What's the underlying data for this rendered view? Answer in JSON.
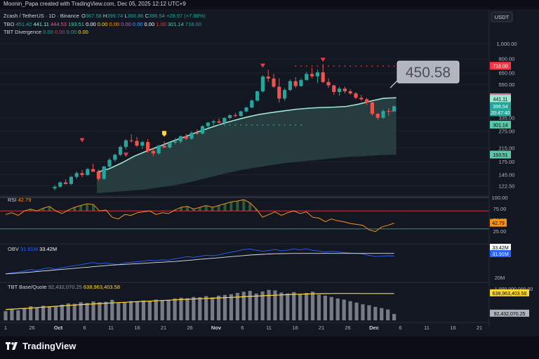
{
  "credit": "Moonin_Papa created with TradingView.com, Dec 05, 2025 12:12 UTC+9",
  "brand": "TradingView",
  "currency_button": "USDT",
  "legend": {
    "symbol": "Zcash / TetherUS · 1D · Binance",
    "o_label": "O",
    "o": "367.58",
    "h_label": "H",
    "h": "399.74",
    "l_label": "L",
    "l": "366.86",
    "c_label": "C",
    "c": "396.54",
    "change": "+28.97 (+7.88%)",
    "tbo_name": "TBO",
    "tbo_values": [
      "451.42",
      "441.11",
      "444.53",
      "193.51",
      "0.00",
      "0.00",
      "0.00",
      "0.00",
      "0.00",
      "0.00",
      "1.00",
      "301.14",
      "718.00"
    ],
    "div_name": "TBT Divergence",
    "div_values": [
      "0.00",
      "0.00",
      "0.00",
      "0.00"
    ],
    "rsi_name": "RSI",
    "rsi_value": "42.79",
    "obv_name": "OBV",
    "obv_values": [
      "31.91M",
      "33.42M"
    ],
    "bq_name": "TBT Base/Quote",
    "bq_values": [
      "92,432,070.25",
      "638,963,403.58"
    ]
  },
  "callout": "450.58",
  "price_scale": {
    "ticks": [
      {
        "label": "1,000.00",
        "v": 1000
      },
      {
        "label": "800.00",
        "v": 800
      },
      {
        "label": "650.00",
        "v": 650
      },
      {
        "label": "550.00",
        "v": 550
      },
      {
        "label": "335.00",
        "v": 335
      },
      {
        "label": "275.00",
        "v": 275
      },
      {
        "label": "215.00",
        "v": 215
      },
      {
        "label": "175.00",
        "v": 175
      },
      {
        "label": "145.00",
        "v": 145
      },
      {
        "label": "122.50",
        "v": 122.5
      }
    ],
    "badges": [
      {
        "label": "718.00",
        "v": 718,
        "color": "#f23645",
        "text": "#ffffff"
      },
      {
        "label": "451.42",
        "v": 451.42,
        "color": "#5bc8a8",
        "text": "#000000"
      },
      {
        "label": "444.53",
        "v": 444.53,
        "color": "#ff4d8f",
        "text": "#000000"
      },
      {
        "label": "441.11",
        "v": 441.11,
        "color": "#9fe8d3",
        "text": "#000000"
      },
      {
        "label": "396.54",
        "v": 396.54,
        "color": "#26a69a",
        "text": "#ffffff",
        "sub": "20:47:40"
      },
      {
        "label": "301.14",
        "v": 301.14,
        "color": "#5bc8a8",
        "text": "#000000"
      },
      {
        "label": "193.51",
        "v": 193.51,
        "color": "#5bc8a8",
        "text": "#000000"
      }
    ]
  },
  "rsi_scale": {
    "ticks": [
      {
        "label": "100.00",
        "v": 100
      },
      {
        "label": "75.00",
        "v": 75
      },
      {
        "label": "50.00",
        "v": 50
      },
      {
        "label": "25.00",
        "v": 25
      }
    ],
    "badge": {
      "label": "42.79",
      "v": 42.79,
      "color": "#f7931a"
    }
  },
  "obv_scale": {
    "ticks": [
      {
        "label": "20M",
        "v": 20
      }
    ],
    "badges": [
      {
        "label": "33.42M",
        "v": 33.42,
        "color": "#ffffff",
        "text": "#000000"
      },
      {
        "label": "31.91M",
        "v": 31.91,
        "color": "#2962ff",
        "text": "#ffffff"
      }
    ]
  },
  "bq_scale": {
    "ticks": [
      {
        "label": "1,000,000,000.00",
        "v": 1000000000
      }
    ],
    "badges": [
      {
        "label": "638,963,403.58",
        "v": 638963403.58,
        "color": "#fdd835",
        "text": "#000000"
      },
      {
        "label": "92,432,070.25",
        "v": 92432070.25,
        "color": "#b0b3bb",
        "text": "#000000"
      }
    ]
  },
  "time_axis": [
    "1",
    "26",
    "Oct",
    "6",
    "11",
    "16",
    "21",
    "26",
    "Nov",
    "6",
    "11",
    "16",
    "21",
    "26",
    "Dec",
    "6",
    "11",
    "16",
    "21"
  ],
  "chart_data": [
    {
      "type": "candlestick",
      "title": "Zcash / TetherUS · 1D · Binance",
      "scale": "log",
      "ylim": [
        110,
        1100
      ],
      "x_axis_labels": [
        "1",
        "26",
        "Oct",
        "6",
        "11",
        "16",
        "21",
        "26",
        "Nov",
        "6",
        "11",
        "16",
        "21",
        "26",
        "Dec",
        "6",
        "11",
        "16",
        "21"
      ],
      "ohlc": [
        [
          118,
          124,
          115,
          121
        ],
        [
          121,
          131,
          119,
          129
        ],
        [
          129,
          135,
          125,
          126
        ],
        [
          126,
          142,
          124,
          140
        ],
        [
          140,
          152,
          136,
          148
        ],
        [
          148,
          155,
          140,
          144
        ],
        [
          144,
          160,
          142,
          157
        ],
        [
          157,
          170,
          152,
          151
        ],
        [
          151,
          156,
          132,
          136
        ],
        [
          136,
          165,
          134,
          163
        ],
        [
          163,
          185,
          160,
          180
        ],
        [
          180,
          198,
          175,
          194
        ],
        [
          194,
          222,
          190,
          218
        ],
        [
          218,
          245,
          210,
          240
        ],
        [
          240,
          262,
          232,
          238
        ],
        [
          238,
          252,
          218,
          222
        ],
        [
          222,
          238,
          212,
          234
        ],
        [
          234,
          245,
          200,
          205
        ],
        [
          205,
          215,
          190,
          198
        ],
        [
          198,
          225,
          195,
          222
        ],
        [
          222,
          236,
          214,
          216
        ],
        [
          216,
          234,
          212,
          232
        ],
        [
          232,
          248,
          226,
          236
        ],
        [
          236,
          258,
          230,
          255
        ],
        [
          255,
          265,
          240,
          246
        ],
        [
          246,
          275,
          242,
          268
        ],
        [
          268,
          282,
          260,
          265
        ],
        [
          265,
          300,
          262,
          296
        ],
        [
          296,
          315,
          288,
          312
        ],
        [
          312,
          325,
          300,
          318
        ],
        [
          318,
          332,
          308,
          312
        ],
        [
          312,
          338,
          305,
          334
        ],
        [
          334,
          352,
          326,
          348
        ],
        [
          348,
          360,
          338,
          344
        ],
        [
          344,
          372,
          340,
          368
        ],
        [
          368,
          395,
          362,
          390
        ],
        [
          390,
          440,
          385,
          432
        ],
        [
          432,
          500,
          425,
          495
        ],
        [
          495,
          630,
          485,
          615
        ],
        [
          615,
          680,
          570,
          598
        ],
        [
          598,
          640,
          520,
          530
        ],
        [
          530,
          600,
          420,
          445
        ],
        [
          445,
          520,
          430,
          505
        ],
        [
          505,
          590,
          495,
          575
        ],
        [
          575,
          610,
          520,
          535
        ],
        [
          535,
          600,
          530,
          585
        ],
        [
          585,
          660,
          580,
          640
        ],
        [
          640,
          700,
          600,
          618
        ],
        [
          618,
          680,
          560,
          655
        ],
        [
          655,
          740,
          560,
          568
        ],
        [
          568,
          600,
          520,
          540
        ],
        [
          540,
          545,
          470,
          490
        ],
        [
          490,
          530,
          465,
          515
        ],
        [
          515,
          530,
          480,
          495
        ],
        [
          495,
          510,
          470,
          480
        ],
        [
          480,
          490,
          440,
          450
        ],
        [
          450,
          470,
          430,
          440
        ],
        [
          440,
          450,
          405,
          420
        ],
        [
          420,
          425,
          345,
          355
        ],
        [
          355,
          360,
          325,
          335
        ],
        [
          335,
          380,
          330,
          370
        ],
        [
          370,
          385,
          345,
          368
        ],
        [
          368,
          400,
          366,
          397
        ]
      ],
      "ribbon_upper": [
        150,
        158,
        172,
        190,
        205,
        220,
        236,
        252,
        270,
        288,
        306,
        322,
        338,
        352,
        362,
        371,
        380,
        386,
        390,
        392,
        396,
        410,
        430,
        447,
        450
      ],
      "ribbon_lower": [
        110,
        112,
        114,
        116,
        120,
        124,
        130,
        138,
        146,
        154,
        160,
        166,
        172,
        176,
        180,
        184,
        188,
        190,
        193,
        194
      ],
      "support_dots": {
        "from": 28,
        "to": 45,
        "value": 301
      },
      "resistance_dots": {
        "from": 44,
        "to": 62,
        "value": 718
      }
    },
    {
      "type": "line",
      "title": "RSI",
      "ylim": [
        0,
        100
      ],
      "x": "candle index",
      "series": [
        {
          "name": "RSI",
          "values": [
            62,
            66,
            60,
            70,
            74,
            70,
            76,
            80,
            70,
            64,
            72,
            78,
            82,
            86,
            84,
            70,
            72,
            56,
            52,
            62,
            60,
            66,
            68,
            70,
            62,
            66,
            64,
            72,
            78,
            80,
            74,
            78,
            82,
            78,
            82,
            86,
            90,
            92,
            95,
            88,
            74,
            56,
            62,
            68,
            60,
            66,
            70,
            64,
            68,
            56,
            54,
            46,
            52,
            48,
            46,
            42,
            40,
            38,
            28,
            24,
            34,
            38,
            42.79
          ]
        }
      ]
    },
    {
      "type": "line",
      "title": "OBV",
      "series": [
        {
          "name": "OBV",
          "values": [
            22,
            22.5,
            23,
            23.6,
            24.4,
            24,
            24.8,
            25.4,
            24.6,
            25.4,
            26,
            26.6,
            27.1,
            27.8,
            28.3,
            27.6,
            28.1,
            27.5,
            27.2,
            28.1,
            28.4,
            28.8,
            29.1,
            29.6,
            29.3,
            29.9,
            29.6,
            30.4,
            31,
            31.6,
            31.2,
            31.8,
            32.4,
            32.1,
            32.6,
            33.4,
            34.1,
            34.8,
            35.6,
            35.9,
            35.2,
            34.6,
            35.1,
            35.6,
            34.9,
            35.3,
            35.9,
            35.4,
            36,
            35.1,
            34.8,
            34.2,
            34.6,
            34.3,
            33.9,
            33.6,
            33.4,
            33.1,
            32.3,
            31.7,
            31.9,
            32.1,
            31.91
          ]
        },
        {
          "name": "OBV MA",
          "values": [
            22,
            22.2,
            22.4,
            22.7,
            23,
            23.3,
            23.6,
            23.9,
            24.2,
            24.5,
            24.8,
            25.1,
            25.4,
            25.7,
            26,
            26.3,
            26.6,
            26.9,
            27.1,
            27.3,
            27.5,
            27.7,
            27.9,
            28.1,
            28.3,
            28.5,
            28.7,
            28.9,
            29.2,
            29.5,
            29.8,
            30.1,
            30.4,
            30.7,
            31,
            31.3,
            31.6,
            31.9,
            32.2,
            32.5,
            32.7,
            32.9,
            33.1,
            33.2,
            33.3,
            33.35,
            33.4,
            33.4,
            33.42,
            33.42,
            33.42,
            33.42,
            33.42,
            33.42,
            33.42,
            33.42,
            33.42,
            33.42,
            33.42,
            33.42,
            33.42,
            33.42,
            33.42
          ]
        }
      ]
    },
    {
      "type": "bar",
      "title": "TBT Base/Quote",
      "scale": "log",
      "series": [
        {
          "name": "Base/Quote",
          "values": [
            120000000.0,
            150000000.0,
            130000000.0,
            160000000.0,
            190000000.0,
            170000000.0,
            200000000.0,
            190000000.0,
            180000000.0,
            220000000.0,
            250000000.0,
            240000000.0,
            280000000.0,
            260000000.0,
            300000000.0,
            280000000.0,
            290000000.0,
            350000000.0,
            260000000.0,
            270000000.0,
            310000000.0,
            290000000.0,
            330000000.0,
            310000000.0,
            360000000.0,
            340000000.0,
            350000000.0,
            400000000.0,
            430000000.0,
            410000000.0,
            460000000.0,
            450000000.0,
            500000000.0,
            440000000.0,
            520000000.0,
            560000000.0,
            600000000.0,
            680000000.0,
            760000000.0,
            820000000.0,
            640000000.0,
            780000000.0,
            900000000.0,
            860000000.0,
            700000000.0,
            640000000.0,
            730000000.0,
            600000000.0,
            670000000.0,
            760000000.0,
            580000000.0,
            520000000.0,
            460000000.0,
            400000000.0,
            360000000.0,
            310000000.0,
            270000000.0,
            230000000.0,
            210000000.0,
            180000000.0,
            160000000.0,
            140000000.0,
            92000000.0
          ]
        },
        {
          "name": "Base/Quote MA",
          "values": [
            140000000.0,
            145000000.0,
            150000000.0,
            155000000.0,
            160000000.0,
            168000000.0,
            175000000.0,
            182000000.0,
            190000000.0,
            198000000.0,
            206000000.0,
            214000000.0,
            222000000.0,
            230000000.0,
            238000000.0,
            246000000.0,
            254000000.0,
            262000000.0,
            270000000.0,
            278000000.0,
            286000000.0,
            294000000.0,
            302000000.0,
            310000000.0,
            320000000.0,
            330000000.0,
            340000000.0,
            350000000.0,
            360000000.0,
            370000000.0,
            380000000.0,
            390000000.0,
            400000000.0,
            410000000.0,
            420000000.0,
            430000000.0,
            442000000.0,
            455000000.0,
            470000000.0,
            485000000.0,
            500000000.0,
            515000000.0,
            530000000.0,
            545000000.0,
            560000000.0,
            575000000.0,
            590000000.0,
            600000000.0,
            610000000.0,
            620000000.0,
            630000000.0,
            635000000.0,
            640000000.0,
            642000000.0,
            642000000.0,
            642000000.0,
            641000000.0,
            640000000.0,
            640000000.0,
            639000000.0,
            639000000.0,
            639000000.0,
            639000000.0
          ]
        }
      ]
    }
  ]
}
